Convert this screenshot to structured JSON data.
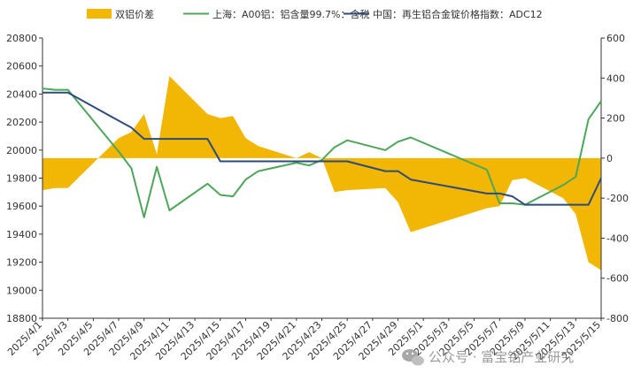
{
  "chart_data": {
    "type": "line",
    "title": "",
    "x_dates": [
      "2025/4/1",
      "2025/4/2",
      "2025/4/3",
      "2025/4/7",
      "2025/4/8",
      "2025/4/9",
      "2025/4/10",
      "2025/4/11",
      "2025/4/14",
      "2025/4/15",
      "2025/4/16",
      "2025/4/17",
      "2025/4/18",
      "2025/4/21",
      "2025/4/22",
      "2025/4/23",
      "2025/4/24",
      "2025/4/25",
      "2025/4/28",
      "2025/4/29",
      "2025/4/30",
      "2025/5/6",
      "2025/5/7",
      "2025/5/8",
      "2025/5/9",
      "2025/5/12",
      "2025/5/13",
      "2025/5/14",
      "2025/5/15"
    ],
    "x_tick_labels": [
      "2025/4/1",
      "2025/4/3",
      "2025/4/5",
      "2025/4/7",
      "2025/4/9",
      "2025/4/11",
      "2025/4/13",
      "2025/4/15",
      "2025/4/17",
      "2025/4/19",
      "2025/4/21",
      "2025/4/23",
      "2025/4/25",
      "2025/4/27",
      "2025/4/29",
      "2025/5/1",
      "2025/5/3",
      "2025/5/5",
      "2025/5/7",
      "2025/5/9",
      "2025/5/11",
      "2025/5/13",
      "2025/5/15"
    ],
    "x_range": [
      "2025/4/1",
      "2025/5/15"
    ],
    "y_left": {
      "min": 18800,
      "max": 20800,
      "step": 200,
      "tick_labels": [
        "18800",
        "19000",
        "19200",
        "19400",
        "19600",
        "19800",
        "20000",
        "20200",
        "20400",
        "20600",
        "20800"
      ]
    },
    "y_right": {
      "min": -800,
      "max": 600,
      "step": 200,
      "tick_labels": [
        "-800",
        "-600",
        "-400",
        "-200",
        "0",
        "200",
        "400",
        "600"
      ]
    },
    "series": [
      {
        "name": "双铝价差",
        "kind": "area",
        "axis": "right",
        "color": "#F2B705",
        "values": [
          -160,
          -150,
          -150,
          100,
          130,
          220,
          20,
          410,
          220,
          200,
          210,
          100,
          60,
          0,
          30,
          0,
          -170,
          -160,
          -150,
          -220,
          -370,
          -250,
          -240,
          -110,
          -100,
          -200,
          -280,
          -520,
          -560
        ]
      },
      {
        "name": "上海：A00铝：铝含量99.7%：含税",
        "kind": "line",
        "axis": "left",
        "color": "#4CA75A",
        "values": [
          20440,
          20430,
          20430,
          19990,
          19870,
          19520,
          19880,
          19570,
          19760,
          19680,
          19670,
          19790,
          19850,
          19910,
          19890,
          19930,
          20020,
          20070,
          20000,
          20060,
          20090,
          19860,
          19620,
          19620,
          19610,
          19750,
          19810,
          20220,
          20350
        ]
      },
      {
        "name": "中国：再生铝合金锭价格指数：ADC12",
        "kind": "line",
        "axis": "left",
        "color": "#2E4B7C",
        "values": [
          20410,
          20410,
          20410,
          20210,
          20160,
          20080,
          20080,
          20080,
          20080,
          19920,
          19920,
          19920,
          19920,
          19920,
          19920,
          19920,
          19920,
          19920,
          19850,
          19850,
          19790,
          19690,
          19690,
          19670,
          19610,
          19610,
          19610,
          19610,
          19800
        ]
      }
    ],
    "legend_position": "top",
    "grid": false
  },
  "colors": {
    "axis": "#333333",
    "text": "#333333",
    "watermark": "#8a8a8a"
  },
  "watermark": {
    "icon": "wechat-icon",
    "text": "公众号 · 富宝铝产业研究"
  }
}
